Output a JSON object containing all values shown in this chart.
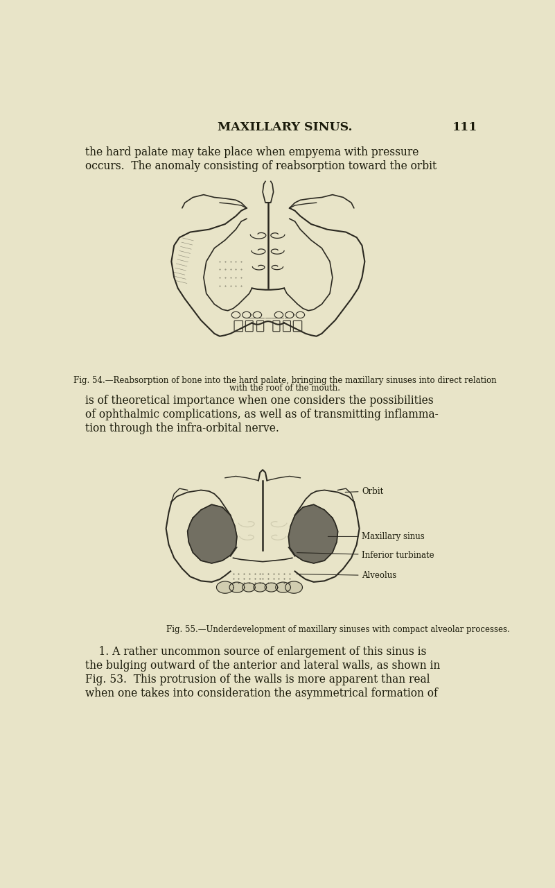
{
  "bg_color": "#e8e4c8",
  "page_width": 8.01,
  "page_height": 12.8,
  "title": "MAXILLARY SINUS.",
  "page_number": "111",
  "title_fontsize": 12.5,
  "body_fontsize": 11.2,
  "caption_fontsize": 8.5,
  "label_fontsize": 8.5,
  "text_color": "#1a1a0a",
  "header_text_1": "the hard palate may take place when empyema with pressure",
  "header_text_2": "occurs.  The anomaly consisting of reabsorption toward the orbit",
  "fig54_caption_1": "Fig. 54.—Reabsorption of bone into the hard palate, bringing the maxillary sinuses into direct relation",
  "fig54_caption_2": "with the roof of the mouth.",
  "para1_line1": "is of theoretical importance when one considers the possibilities",
  "para1_line2": "of ophthalmic complications, as well as of transmitting inflamma-",
  "para1_line3": "tion through the infra-orbital nerve.",
  "label_orbit": "Orbit",
  "label_maxillary": "Maxillary sinus",
  "label_inferior": "Inferior turbinate",
  "label_alveolus": "Alveolus",
  "fig55_caption": "Fig. 55.—Underdevelopment of maxillary sinuses with compact alveolar processes.",
  "para2_line1": "    1. A rather uncommon source of enlargement of this sinus is",
  "para2_line2": "the bulging outward of the anterior and lateral walls, as shown in",
  "para2_line3": "Fig. 53.  This protrusion of the walls is more apparent than real",
  "para2_line4": "when one takes into consideration the asymmetrical formation of"
}
